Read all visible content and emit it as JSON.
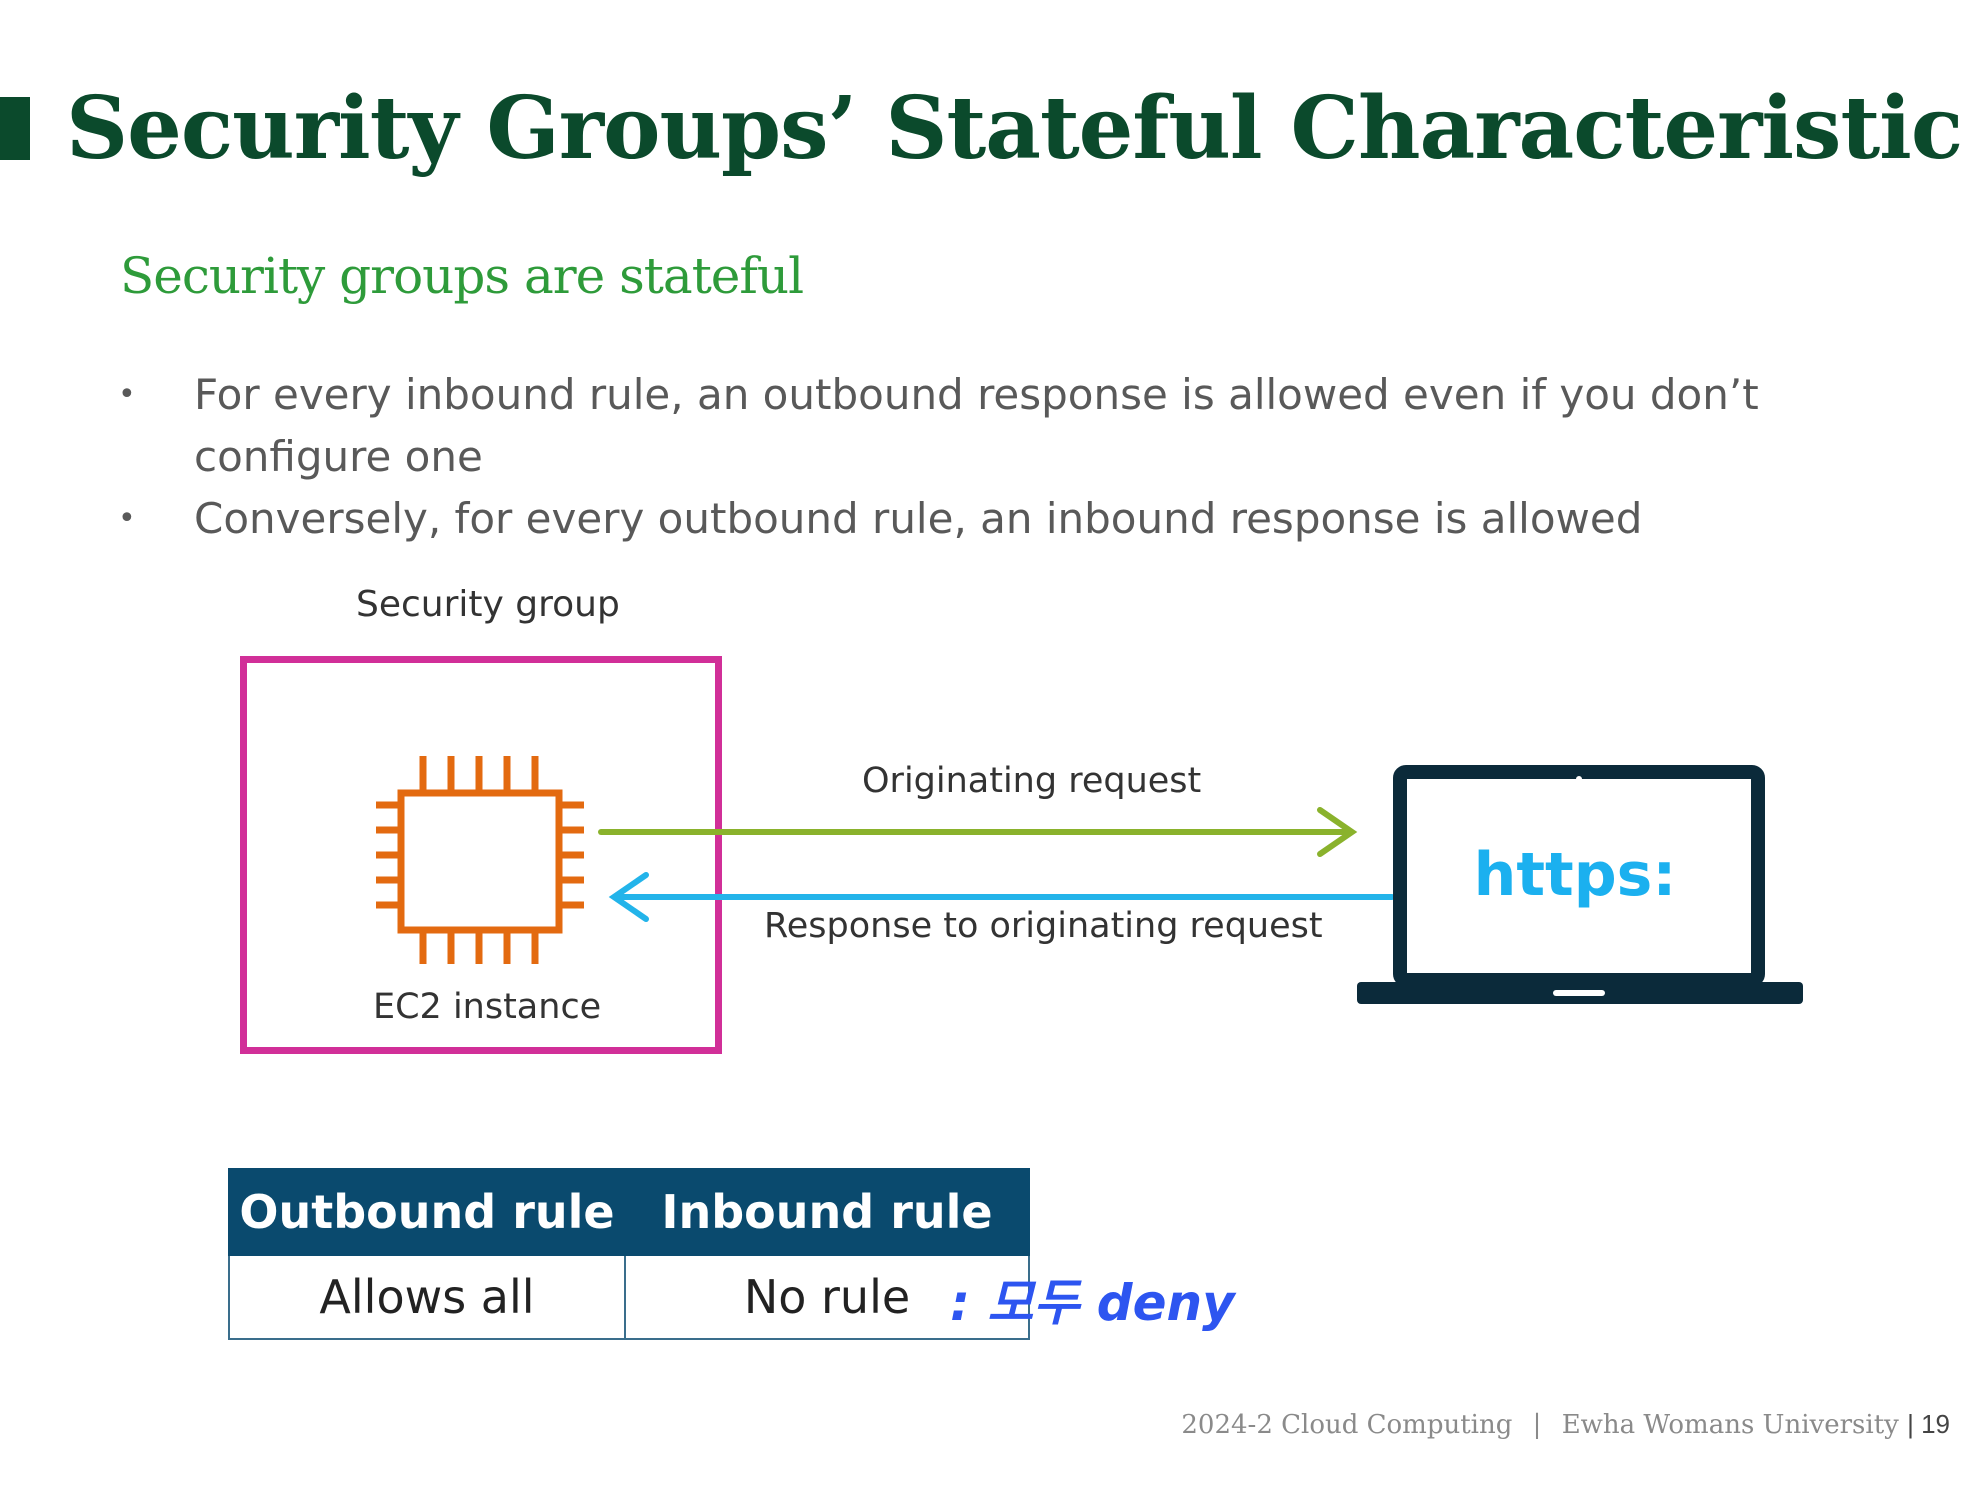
{
  "slide": {
    "title": "Security Groups’ Stateful Characteristic",
    "subtitle": "Security groups are stateful",
    "bullets": [
      "For every inbound rule, an outbound response is allowed even if you don’t configure one",
      "Conversely, for every outbound rule, an inbound response is allowed"
    ]
  },
  "diagram": {
    "security_group_label": "Security group",
    "instance_label": "EC2 instance",
    "request_label": "Originating request",
    "response_label": "Response to originating request",
    "laptop_screen_text": "https:",
    "colors": {
      "security_group_border": "#d12f98",
      "instance_icon": "#e36a10",
      "request_arrow": "#8ab22c",
      "response_arrow": "#23b4ea",
      "laptop": "#0b2a3a"
    },
    "icons": [
      "ec2-chip-icon",
      "laptop-icon"
    ]
  },
  "rules_table": {
    "headers": [
      "Outbound rule",
      "Inbound rule"
    ],
    "rows": [
      [
        "Allows all",
        "No rule"
      ]
    ]
  },
  "annotation": {
    "text": ": 모두 deny"
  },
  "footer": {
    "course": "2024-2 Cloud Computing",
    "separator": "|",
    "university": "Ewha Womans University",
    "page": "| 19"
  }
}
